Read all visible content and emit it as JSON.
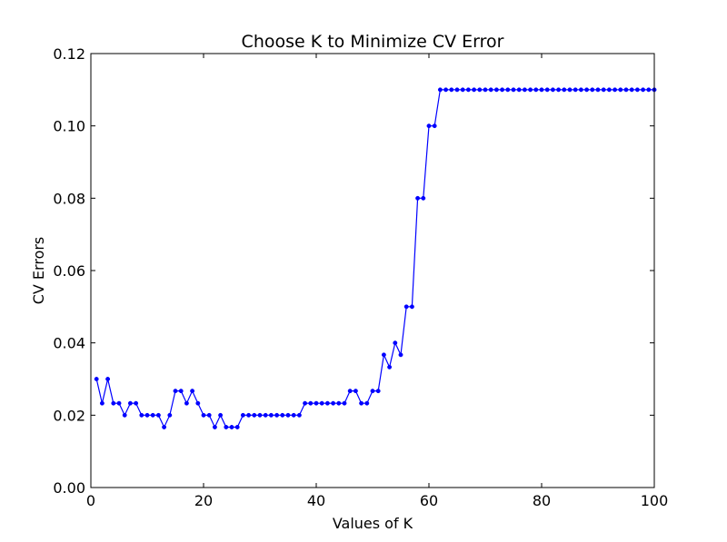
{
  "chart_data": {
    "type": "line",
    "title": "Choose K to Minimize CV Error",
    "xlabel": "Values of K",
    "ylabel": "CV Errors",
    "xlim": [
      0,
      100
    ],
    "ylim": [
      0.0,
      0.12
    ],
    "x_ticks": [
      0,
      20,
      40,
      60,
      80,
      100
    ],
    "x_tick_labels": [
      "0",
      "20",
      "40",
      "60",
      "80",
      "100"
    ],
    "y_ticks": [
      0.0,
      0.02,
      0.04,
      0.06,
      0.08,
      0.1,
      0.12
    ],
    "y_tick_labels": [
      "0.00",
      "0.02",
      "0.04",
      "0.06",
      "0.08",
      "0.10",
      "0.12"
    ],
    "grid": false,
    "colors": {
      "series": "#0000ff",
      "axes": "#000000"
    },
    "series": [
      {
        "marker": "dot",
        "x": [
          1,
          2,
          3,
          4,
          5,
          6,
          7,
          8,
          9,
          10,
          11,
          12,
          13,
          14,
          15,
          16,
          17,
          18,
          19,
          20,
          21,
          22,
          23,
          24,
          25,
          26,
          27,
          28,
          29,
          30,
          31,
          32,
          33,
          34,
          35,
          36,
          37,
          38,
          39,
          40,
          41,
          42,
          43,
          44,
          45,
          46,
          47,
          48,
          49,
          50,
          51,
          52,
          53,
          54,
          55,
          56,
          57,
          58,
          59,
          60,
          61,
          62,
          63,
          64,
          65,
          66,
          67,
          68,
          69,
          70,
          71,
          72,
          73,
          74,
          75,
          76,
          77,
          78,
          79,
          80,
          81,
          82,
          83,
          84,
          85,
          86,
          87,
          88,
          89,
          90,
          91,
          92,
          93,
          94,
          95,
          96,
          97,
          98,
          99,
          100
        ],
        "values": [
          0.03,
          0.0233,
          0.03,
          0.0233,
          0.0233,
          0.02,
          0.0233,
          0.0233,
          0.02,
          0.02,
          0.02,
          0.02,
          0.0167,
          0.02,
          0.0267,
          0.0267,
          0.0233,
          0.0267,
          0.0233,
          0.02,
          0.02,
          0.0167,
          0.02,
          0.0167,
          0.0167,
          0.0167,
          0.02,
          0.02,
          0.02,
          0.02,
          0.02,
          0.02,
          0.02,
          0.02,
          0.02,
          0.02,
          0.02,
          0.0233,
          0.0233,
          0.0233,
          0.0233,
          0.0233,
          0.0233,
          0.0233,
          0.0233,
          0.0267,
          0.0267,
          0.0233,
          0.0233,
          0.0267,
          0.0267,
          0.0367,
          0.0333,
          0.04,
          0.0367,
          0.05,
          0.05,
          0.08,
          0.08,
          0.1,
          0.1,
          0.11,
          0.11,
          0.11,
          0.11,
          0.11,
          0.11,
          0.11,
          0.11,
          0.11,
          0.11,
          0.11,
          0.11,
          0.11,
          0.11,
          0.11,
          0.11,
          0.11,
          0.11,
          0.11,
          0.11,
          0.11,
          0.11,
          0.11,
          0.11,
          0.11,
          0.11,
          0.11,
          0.11,
          0.11,
          0.11,
          0.11,
          0.11,
          0.11,
          0.11,
          0.11,
          0.11,
          0.11,
          0.11,
          0.11
        ]
      }
    ]
  }
}
